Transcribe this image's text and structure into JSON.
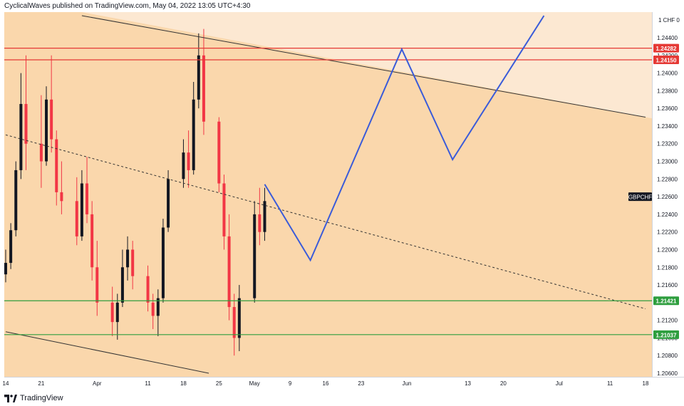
{
  "header": {
    "text": "CyclicalWaves published on TradingView.com, May 04, 2022 13:05 UTC+4:30"
  },
  "footer": {
    "brand": "TradingView",
    "logo_icon": "tradingview-logo-icon"
  },
  "colors": {
    "upper_band": "#fce8d2",
    "main_band": "#fad7ac",
    "candle_up": "#131722",
    "candle_down": "#f23645",
    "resistance": "#e53935",
    "support": "#2e9e3e",
    "projection": "#3a5bd9",
    "trendline": "#333333"
  },
  "chart_data": {
    "type": "candlestick",
    "symbol": "GBPCHF",
    "currency_label": "1 CHF 0",
    "ylim": [
      1.2055,
      1.2465
    ],
    "y_ticks": [
      "1.24400",
      "1.24200",
      "1.24000",
      "1.23800",
      "1.23600",
      "1.23400",
      "1.23200",
      "1.23000",
      "1.22800",
      "1.22600",
      "1.22400",
      "1.22200",
      "1.22000",
      "1.21800",
      "1.21600",
      "1.21400",
      "1.21200",
      "1.21000",
      "1.20800",
      "1.20600"
    ],
    "x_ticks": [
      {
        "label": "14",
        "date": "2022-03-14"
      },
      {
        "label": "21",
        "date": "2022-03-21"
      },
      {
        "label": "Apr",
        "date": "2022-04-01"
      },
      {
        "label": "11",
        "date": "2022-04-11"
      },
      {
        "label": "18",
        "date": "2022-04-18"
      },
      {
        "label": "25",
        "date": "2022-04-25"
      },
      {
        "label": "May",
        "date": "2022-05-02"
      },
      {
        "label": "9",
        "date": "2022-05-09"
      },
      {
        "label": "16",
        "date": "2022-05-16"
      },
      {
        "label": "23",
        "date": "2022-05-23"
      },
      {
        "label": "Jun",
        "date": "2022-06-01"
      },
      {
        "label": "13",
        "date": "2022-06-13"
      },
      {
        "label": "20",
        "date": "2022-06-20"
      },
      {
        "label": "Jul",
        "date": "2022-07-01"
      },
      {
        "label": "11",
        "date": "2022-07-11"
      },
      {
        "label": "18",
        "date": "2022-07-18"
      }
    ],
    "price_marker": "1.22600",
    "horizontal_levels": [
      {
        "label": "1.24282",
        "value": 1.24282,
        "kind": "resistance"
      },
      {
        "label": "1.24150",
        "value": 1.2415,
        "kind": "resistance"
      },
      {
        "label": "1.21421",
        "value": 1.21421,
        "kind": "support"
      },
      {
        "label": "1.21037",
        "value": 1.21037,
        "kind": "support"
      }
    ],
    "projection_path": [
      {
        "date": "2022-05-04",
        "price": 1.2274
      },
      {
        "date": "2022-05-13",
        "price": 1.2188
      },
      {
        "date": "2022-05-31",
        "price": 1.2427
      },
      {
        "date": "2022-06-10",
        "price": 1.2302
      },
      {
        "date": "2022-06-28",
        "price": 1.2465
      }
    ],
    "trendlines": [
      {
        "style": "solid",
        "from": {
          "date": "2022-03-29",
          "price": 1.2465
        },
        "to": {
          "date": "2022-07-18",
          "price": 1.235
        }
      },
      {
        "style": "dashed",
        "from": {
          "date": "2022-03-14",
          "price": 1.233
        },
        "to": {
          "date": "2022-07-18",
          "price": 1.2133
        }
      },
      {
        "style": "solid",
        "from": {
          "date": "2022-03-14",
          "price": 1.2107
        },
        "to": {
          "date": "2022-04-23",
          "price": 1.206
        }
      }
    ],
    "candles": [
      {
        "date": "2022-03-14",
        "open": 1.2172,
        "high": 1.22,
        "low": 1.2163,
        "close": 1.2185
      },
      {
        "date": "2022-03-15",
        "open": 1.2185,
        "high": 1.223,
        "low": 1.2178,
        "close": 1.2222
      },
      {
        "date": "2022-03-16",
        "open": 1.2222,
        "high": 1.23,
        "low": 1.2215,
        "close": 1.229
      },
      {
        "date": "2022-03-17",
        "open": 1.229,
        "high": 1.24,
        "low": 1.228,
        "close": 1.2365
      },
      {
        "date": "2022-03-18",
        "open": 1.2365,
        "high": 1.242,
        "low": 1.229,
        "close": 1.232
      },
      {
        "date": "2022-03-21",
        "open": 1.232,
        "high": 1.2375,
        "low": 1.227,
        "close": 1.23
      },
      {
        "date": "2022-03-22",
        "open": 1.23,
        "high": 1.2385,
        "low": 1.2295,
        "close": 1.237
      },
      {
        "date": "2022-03-23",
        "open": 1.237,
        "high": 1.242,
        "low": 1.231,
        "close": 1.2325
      },
      {
        "date": "2022-03-24",
        "open": 1.2325,
        "high": 1.2335,
        "low": 1.225,
        "close": 1.2265
      },
      {
        "date": "2022-03-25",
        "open": 1.2265,
        "high": 1.23,
        "low": 1.224,
        "close": 1.2255
      },
      {
        "date": "2022-03-28",
        "open": 1.2255,
        "high": 1.2282,
        "low": 1.2205,
        "close": 1.2215
      },
      {
        "date": "2022-03-29",
        "open": 1.2215,
        "high": 1.229,
        "low": 1.221,
        "close": 1.2275
      },
      {
        "date": "2022-03-30",
        "open": 1.2275,
        "high": 1.2305,
        "low": 1.223,
        "close": 1.224
      },
      {
        "date": "2022-03-31",
        "open": 1.224,
        "high": 1.2255,
        "low": 1.2165,
        "close": 1.218
      },
      {
        "date": "2022-04-01",
        "open": 1.218,
        "high": 1.221,
        "low": 1.2125,
        "close": 1.214
      },
      {
        "date": "2022-04-04",
        "open": 1.214,
        "high": 1.2158,
        "low": 1.2102,
        "close": 1.2118
      },
      {
        "date": "2022-04-05",
        "open": 1.2118,
        "high": 1.215,
        "low": 1.2098,
        "close": 1.214
      },
      {
        "date": "2022-04-06",
        "open": 1.214,
        "high": 1.22,
        "low": 1.2135,
        "close": 1.218
      },
      {
        "date": "2022-04-07",
        "open": 1.218,
        "high": 1.2215,
        "low": 1.2165,
        "close": 1.22
      },
      {
        "date": "2022-04-08",
        "open": 1.22,
        "high": 1.221,
        "low": 1.2155,
        "close": 1.217
      },
      {
        "date": "2022-04-11",
        "open": 1.217,
        "high": 1.2182,
        "low": 1.213,
        "close": 1.214
      },
      {
        "date": "2022-04-12",
        "open": 1.214,
        "high": 1.215,
        "low": 1.211,
        "close": 1.2125
      },
      {
        "date": "2022-04-13",
        "open": 1.2125,
        "high": 1.2155,
        "low": 1.2102,
        "close": 1.2145
      },
      {
        "date": "2022-04-14",
        "open": 1.2145,
        "high": 1.2235,
        "low": 1.214,
        "close": 1.2225
      },
      {
        "date": "2022-04-15",
        "open": 1.2225,
        "high": 1.229,
        "low": 1.222,
        "close": 1.228
      },
      {
        "date": "2022-04-18",
        "open": 1.228,
        "high": 1.2325,
        "low": 1.227,
        "close": 1.231
      },
      {
        "date": "2022-04-19",
        "open": 1.231,
        "high": 1.2335,
        "low": 1.227,
        "close": 1.229
      },
      {
        "date": "2022-04-20",
        "open": 1.229,
        "high": 1.239,
        "low": 1.2285,
        "close": 1.237
      },
      {
        "date": "2022-04-21",
        "open": 1.237,
        "high": 1.2445,
        "low": 1.236,
        "close": 1.242
      },
      {
        "date": "2022-04-22",
        "open": 1.242,
        "high": 1.245,
        "low": 1.233,
        "close": 1.2345
      },
      {
        "date": "2022-04-25",
        "open": 1.2345,
        "high": 1.235,
        "low": 1.2265,
        "close": 1.2275
      },
      {
        "date": "2022-04-26",
        "open": 1.2275,
        "high": 1.2285,
        "low": 1.22,
        "close": 1.2215
      },
      {
        "date": "2022-04-27",
        "open": 1.2215,
        "high": 1.224,
        "low": 1.212,
        "close": 1.2135
      },
      {
        "date": "2022-04-28",
        "open": 1.2135,
        "high": 1.215,
        "low": 1.208,
        "close": 1.21
      },
      {
        "date": "2022-04-29",
        "open": 1.21,
        "high": 1.216,
        "low": 1.2085,
        "close": 1.2145
      },
      {
        "date": "2022-05-02",
        "open": 1.2145,
        "high": 1.2255,
        "low": 1.214,
        "close": 1.224
      },
      {
        "date": "2022-05-03",
        "open": 1.224,
        "high": 1.227,
        "low": 1.2205,
        "close": 1.222
      },
      {
        "date": "2022-05-04",
        "open": 1.222,
        "high": 1.227,
        "low": 1.221,
        "close": 1.2255
      }
    ]
  }
}
